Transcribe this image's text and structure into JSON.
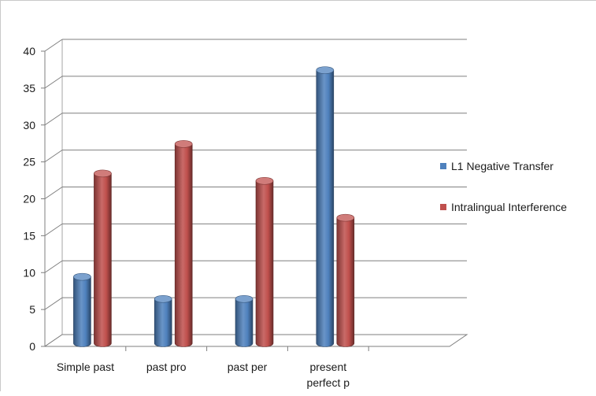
{
  "chart_data": {
    "type": "bar",
    "style": "3d-cylinder",
    "categories": [
      [
        "Simple past"
      ],
      [
        "past pro"
      ],
      [
        "past per"
      ],
      [
        "present",
        "perfect p"
      ],
      [
        ""
      ]
    ],
    "series": [
      {
        "name": "L1 Negative Transfer",
        "values": [
          9,
          6,
          6,
          37,
          null
        ],
        "color": "#4f81bd"
      },
      {
        "name": "Intralingual Interference",
        "values": [
          23,
          27,
          22,
          17,
          null
        ],
        "color": "#c0504d"
      }
    ],
    "ylim": [
      0,
      40
    ],
    "yticks": [
      0,
      5,
      10,
      15,
      20,
      25,
      30,
      35,
      40
    ],
    "grid": true,
    "legend": "right"
  }
}
